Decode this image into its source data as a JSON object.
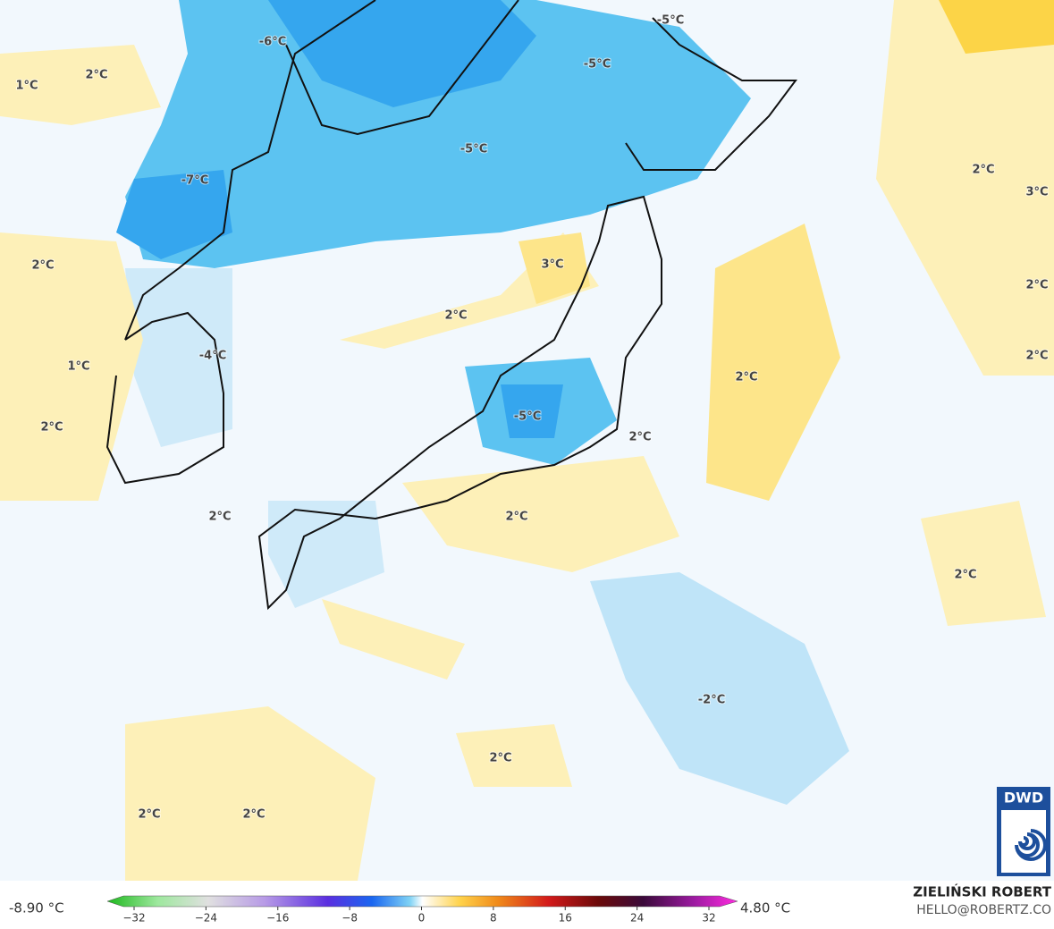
{
  "map": {
    "labels": [
      "1°C",
      "2°C",
      "-6°C",
      "-5°C",
      "-5°C",
      "-5°C",
      "-7°C",
      "2°C",
      "3°C",
      "2°C",
      "3°C",
      "2°C",
      "2°C",
      "-4°C",
      "1°C",
      "2°C",
      "2°C",
      "2°C",
      "-5°C",
      "2°C",
      "2°C",
      "2°C",
      "2°C",
      "-2°C",
      "2°C",
      "2°C",
      "2°C"
    ]
  },
  "logo": "DWD",
  "colorbar": {
    "min_label": "-8.90 °C",
    "max_label": "4.80 °C",
    "ticks": [
      {
        "value": -32,
        "label": "−32"
      },
      {
        "value": -24,
        "label": "−24"
      },
      {
        "value": -16,
        "label": "−16"
      },
      {
        "value": -8,
        "label": "−8"
      },
      0,
      8,
      16,
      24,
      32
    ]
  },
  "credit": {
    "name": "ZIELIŃSKI ROBERT",
    "contact": "HELLO@ROBERTZ.CO"
  }
}
